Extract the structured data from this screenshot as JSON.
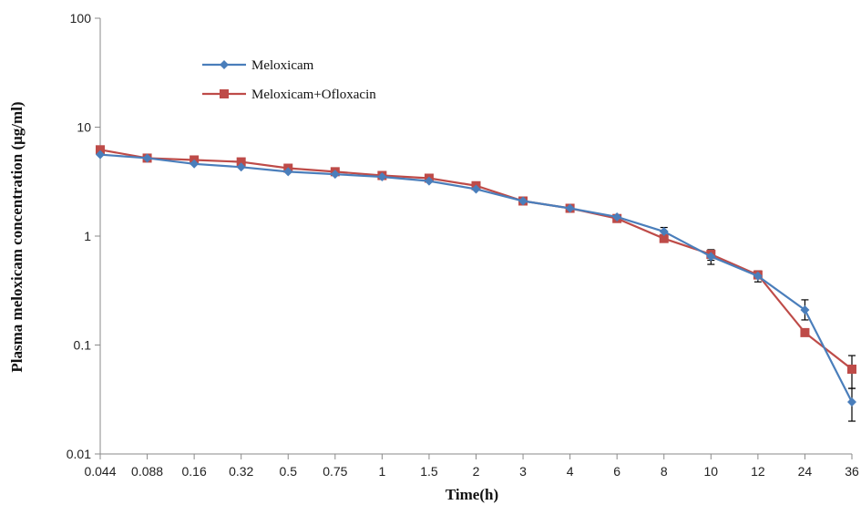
{
  "chart_data": {
    "type": "line",
    "xlabel": "Time(h)",
    "ylabel": "Plasma meloxicam concentration (μg/ml)",
    "y_scale": "log",
    "ylim": [
      0.01,
      100
    ],
    "y_ticks": [
      "0.01",
      "0.1",
      "1",
      "10",
      "100"
    ],
    "categories": [
      "0.044",
      "0.088",
      "0.16",
      "0.32",
      "0.5",
      "0.75",
      "1",
      "1.5",
      "2",
      "3",
      "4",
      "6",
      "8",
      "10",
      "12",
      "24",
      "36"
    ],
    "grid": false,
    "legend_position": "top-left",
    "series": [
      {
        "name": "Meloxicam",
        "color": "#4a7ebb",
        "marker": "diamond",
        "values": [
          5.6,
          5.2,
          4.6,
          4.3,
          3.9,
          3.7,
          3.5,
          3.2,
          2.7,
          2.1,
          1.8,
          1.5,
          1.1,
          0.65,
          0.43,
          0.21,
          0.03
        ],
        "error_high": [
          null,
          null,
          null,
          null,
          null,
          null,
          null,
          null,
          null,
          null,
          null,
          null,
          1.2,
          0.73,
          0.48,
          0.26,
          0.04
        ],
        "error_low": [
          null,
          null,
          null,
          null,
          null,
          null,
          null,
          null,
          null,
          null,
          null,
          null,
          1.0,
          0.55,
          0.38,
          0.17,
          0.02
        ]
      },
      {
        "name": "Meloxicam+Ofloxacin",
        "color": "#be4b48",
        "marker": "square",
        "values": [
          6.2,
          5.2,
          5.0,
          4.8,
          4.2,
          3.9,
          3.6,
          3.4,
          2.9,
          2.1,
          1.8,
          1.45,
          0.95,
          0.68,
          0.44,
          0.13,
          0.06
        ],
        "error_high": [
          null,
          null,
          null,
          null,
          null,
          null,
          null,
          null,
          null,
          null,
          null,
          null,
          null,
          0.75,
          null,
          null,
          0.08
        ],
        "error_low": [
          null,
          null,
          null,
          null,
          null,
          null,
          null,
          null,
          null,
          null,
          null,
          null,
          null,
          0.6,
          null,
          null,
          0.04
        ]
      }
    ]
  }
}
